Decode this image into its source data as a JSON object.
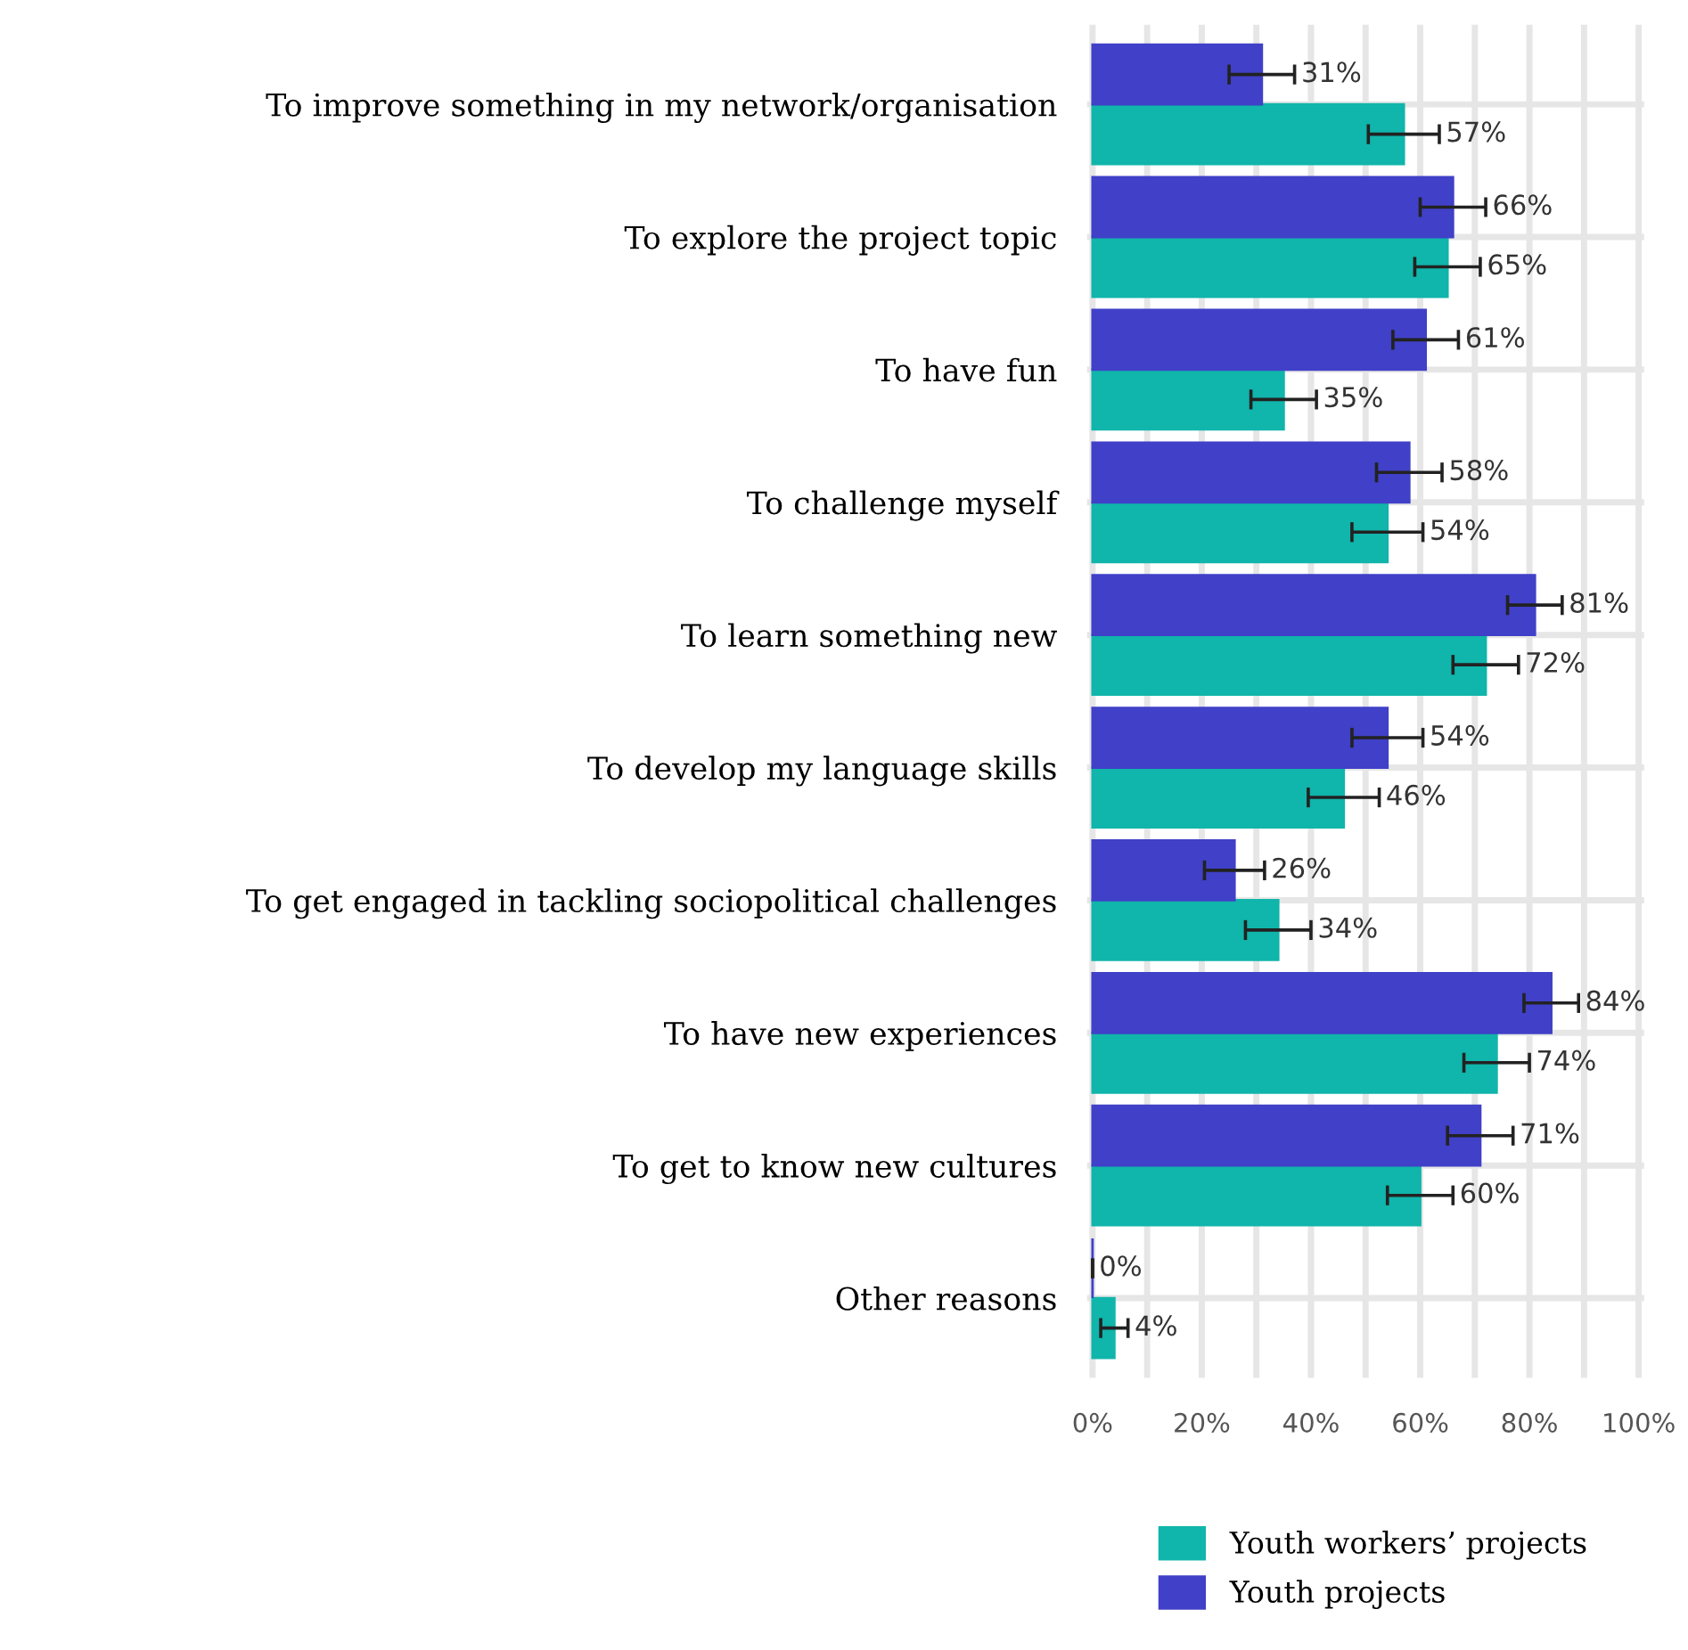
{
  "chart_data": {
    "type": "bar",
    "orientation": "horizontal",
    "categories": [
      "To improve something in my network/organisation",
      "To explore the project topic",
      "To have fun",
      "To challenge myself",
      "To learn something new",
      "To develop my language skills",
      "To get engaged in tackling sociopolitical challenges",
      "To have new experiences",
      "To get to know new cultures",
      "Other reasons"
    ],
    "series": [
      {
        "name": "Youth workers’ projects",
        "color": "#10b5ab",
        "values": [
          57,
          65,
          35,
          54,
          72,
          46,
          34,
          74,
          60,
          4
        ],
        "errors": [
          6.5,
          6,
          6,
          6.5,
          6,
          6.5,
          6,
          6,
          6,
          2.5
        ],
        "value_labels": [
          "57%",
          "65%",
          "35%",
          "54%",
          "72%",
          "46%",
          "34%",
          "74%",
          "60%",
          "4%"
        ]
      },
      {
        "name": "Youth projects",
        "color": "#4040c8",
        "values": [
          31,
          66,
          61,
          58,
          81,
          54,
          26,
          84,
          71,
          0
        ],
        "errors": [
          6,
          6,
          6,
          6,
          5,
          6.5,
          5.5,
          5,
          6,
          0
        ],
        "value_labels": [
          "31%",
          "66%",
          "61%",
          "58%",
          "81%",
          "54%",
          "26%",
          "84%",
          "71%",
          "0%"
        ]
      }
    ],
    "xlim": [
      0,
      100
    ],
    "xticks": [
      {
        "value": 0,
        "label": "0%"
      },
      {
        "value": 10,
        "label": null
      },
      {
        "value": 20,
        "label": "20%"
      },
      {
        "value": 30,
        "label": null
      },
      {
        "value": 40,
        "label": "40%"
      },
      {
        "value": 50,
        "label": null
      },
      {
        "value": 60,
        "label": "60%"
      },
      {
        "value": 70,
        "label": null
      },
      {
        "value": 80,
        "label": "80%"
      },
      {
        "value": 90,
        "label": null
      },
      {
        "value": 100,
        "label": "100%"
      }
    ],
    "grid": true,
    "legend": "bottom right"
  }
}
